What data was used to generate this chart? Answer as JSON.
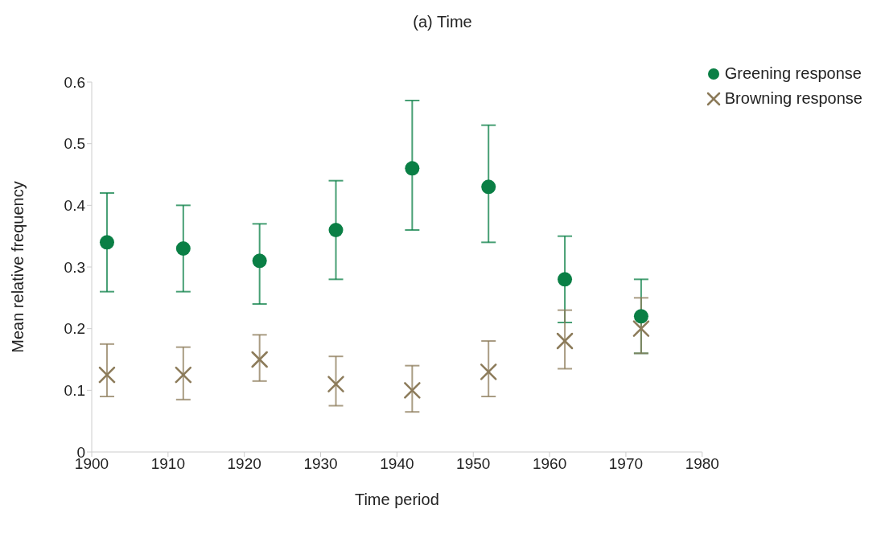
{
  "chart_data": {
    "type": "scatter",
    "title": "(a) Time",
    "xlabel": "Time period",
    "ylabel": "Mean relative frequency",
    "x": [
      1902,
      1912,
      1922,
      1932,
      1942,
      1952,
      1962,
      1972
    ],
    "series": [
      {
        "name": "Greening response",
        "color": "#0a7f45",
        "marker": "circle",
        "values": [
          0.34,
          0.33,
          0.31,
          0.36,
          0.46,
          0.43,
          0.28,
          0.22
        ],
        "errors": [
          [
            0.26,
            0.42
          ],
          [
            0.26,
            0.4
          ],
          [
            0.24,
            0.37
          ],
          [
            0.28,
            0.44
          ],
          [
            0.36,
            0.57
          ],
          [
            0.34,
            0.53
          ],
          [
            0.21,
            0.35
          ],
          [
            0.16,
            0.28
          ]
        ]
      },
      {
        "name": "Browning response",
        "color": "#8c7b5a",
        "marker": "cross",
        "values": [
          0.125,
          0.125,
          0.15,
          0.11,
          0.1,
          0.13,
          0.18,
          0.2
        ],
        "errors": [
          [
            0.09,
            0.175
          ],
          [
            0.085,
            0.17
          ],
          [
            0.115,
            0.19
          ],
          [
            0.075,
            0.155
          ],
          [
            0.065,
            0.14
          ],
          [
            0.09,
            0.18
          ],
          [
            0.135,
            0.23
          ],
          [
            0.16,
            0.25
          ]
        ]
      }
    ],
    "xlim": [
      1900,
      1980
    ],
    "xticks": [
      1900,
      1910,
      1920,
      1930,
      1940,
      1950,
      1960,
      1970,
      1980
    ],
    "ylim": [
      0,
      0.6
    ],
    "yticks": [
      0,
      0.1,
      0.2,
      0.3,
      0.4,
      0.5,
      0.6
    ],
    "legend": "top right"
  }
}
